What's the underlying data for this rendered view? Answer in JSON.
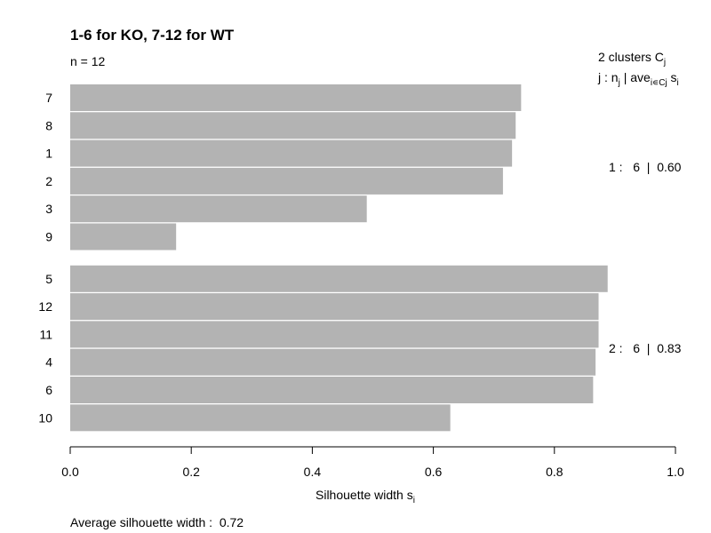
{
  "chart_data": {
    "type": "bar",
    "orientation": "horizontal",
    "title": "1-6 for KO, 7-12 for WT",
    "subtitle": "n = 12",
    "xlabel": "Silhouette width",
    "xlabel_subscript": "i",
    "xlabel_symbol": "s",
    "xlim": [
      0.0,
      1.0
    ],
    "xticks": [
      "0.0",
      "0.2",
      "0.4",
      "0.6",
      "0.8",
      "1.0"
    ],
    "bar_color": "#b3b3b3",
    "legend": {
      "title": "2 clusters C",
      "title_subscript": "j",
      "header_prefix": "j :  n",
      "header_n_sub": "j",
      "header_mid": " | ave",
      "header_ave_sub": "i∊Cj",
      "header_s": " s",
      "header_s_sub": "i"
    },
    "clusters": [
      {
        "label": "1 :   6  |  0.60",
        "items": [
          {
            "label": "7",
            "value": 0.745
          },
          {
            "label": "8",
            "value": 0.736
          },
          {
            "label": "1",
            "value": 0.73
          },
          {
            "label": "2",
            "value": 0.715
          },
          {
            "label": "3",
            "value": 0.49
          },
          {
            "label": "9",
            "value": 0.175
          }
        ]
      },
      {
        "label": "2 :   6  |  0.83",
        "items": [
          {
            "label": "5",
            "value": 0.888
          },
          {
            "label": "12",
            "value": 0.873
          },
          {
            "label": "11",
            "value": 0.873
          },
          {
            "label": "4",
            "value": 0.868
          },
          {
            "label": "6",
            "value": 0.864
          },
          {
            "label": "10",
            "value": 0.628
          }
        ]
      }
    ],
    "footer": "Average silhouette width :  0.72"
  }
}
